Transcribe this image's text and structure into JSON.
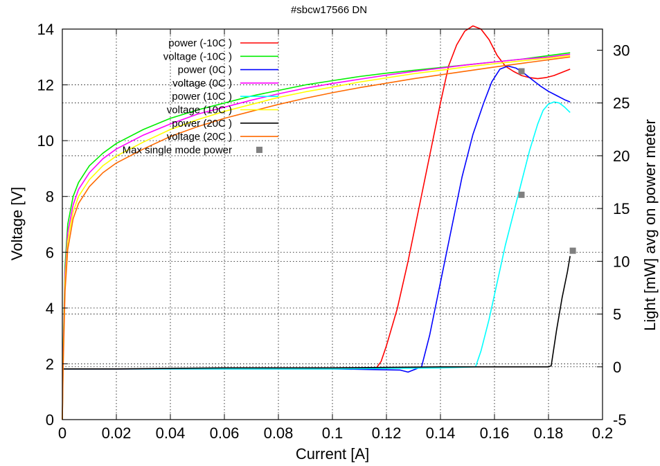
{
  "chart_data": {
    "type": "line",
    "title": "#sbcw17566 DN",
    "xlabel": "Current [A]",
    "ylabel": "Voltage [V]",
    "y2label": "Light [mW] avg on power meter",
    "xlim": [
      0,
      0.2
    ],
    "ylim": [
      0,
      14
    ],
    "y2lim": [
      -5,
      32
    ],
    "xticks": [
      "0",
      "0.02",
      "0.04",
      "0.06",
      "0.08",
      "0.1",
      "0.12",
      "0.14",
      "0.16",
      "0.18",
      "0.2"
    ],
    "yticks": [
      "0",
      "2",
      "4",
      "6",
      "8",
      "10",
      "12",
      "14"
    ],
    "y2ticks": [
      "-5",
      "0",
      "5",
      "10",
      "15",
      "20",
      "25",
      "30"
    ],
    "grid": true,
    "legend_position": "top-left",
    "series": [
      {
        "name": "power (-10C )",
        "axis": "y2",
        "color": "#ff0000",
        "x": [
          0,
          0.02,
          0.06,
          0.1,
          0.116,
          0.118,
          0.12,
          0.124,
          0.128,
          0.132,
          0.136,
          0.14,
          0.143,
          0.146,
          0.149,
          0.152,
          0.155,
          0.158,
          0.161,
          0.164,
          0.167,
          0.17,
          0.173,
          0.176,
          0.179,
          0.182,
          0.185,
          0.188
        ],
        "y": [
          -0.2,
          -0.2,
          -0.2,
          -0.2,
          -0.2,
          0.5,
          2.0,
          5.5,
          10.0,
          15.0,
          20.0,
          25.0,
          28.5,
          30.5,
          31.8,
          32.3,
          32.0,
          31.0,
          29.5,
          28.5,
          28.0,
          27.6,
          27.4,
          27.3,
          27.4,
          27.6,
          27.9,
          28.2
        ]
      },
      {
        "name": "voltage (-10C )",
        "axis": "y",
        "color": "#00ee00",
        "x": [
          0,
          0.0003,
          0.001,
          0.002,
          0.004,
          0.006,
          0.01,
          0.015,
          0.02,
          0.03,
          0.04,
          0.05,
          0.06,
          0.07,
          0.08,
          0.09,
          0.1,
          0.11,
          0.12,
          0.13,
          0.14,
          0.15,
          0.16,
          0.17,
          0.18,
          0.188
        ],
        "y": [
          0,
          2.5,
          5.5,
          7.0,
          8.0,
          8.5,
          9.1,
          9.55,
          9.9,
          10.4,
          10.8,
          11.1,
          11.35,
          11.6,
          11.8,
          12.0,
          12.15,
          12.3,
          12.42,
          12.52,
          12.62,
          12.72,
          12.82,
          12.92,
          13.05,
          13.15
        ]
      },
      {
        "name": "power (0C )",
        "axis": "y2",
        "color": "#0000ff",
        "x": [
          0,
          0.02,
          0.06,
          0.1,
          0.125,
          0.128,
          0.131,
          0.133,
          0.136,
          0.14,
          0.144,
          0.148,
          0.152,
          0.156,
          0.159,
          0.162,
          0.165,
          0.168,
          0.171,
          0.174,
          0.177,
          0.18,
          0.183,
          0.186,
          0.188
        ],
        "y": [
          -0.2,
          -0.2,
          -0.2,
          -0.2,
          -0.3,
          -0.5,
          -0.2,
          0,
          3.0,
          8.0,
          13.0,
          18.0,
          22.0,
          25.0,
          27.0,
          28.2,
          28.5,
          28.3,
          27.8,
          27.2,
          26.6,
          26.1,
          25.7,
          25.3,
          25.1
        ]
      },
      {
        "name": "voltage (0C )",
        "axis": "y",
        "color": "#ff00ff",
        "x": [
          0,
          0.0003,
          0.001,
          0.002,
          0.004,
          0.006,
          0.01,
          0.015,
          0.02,
          0.03,
          0.04,
          0.05,
          0.06,
          0.07,
          0.08,
          0.09,
          0.1,
          0.11,
          0.12,
          0.13,
          0.14,
          0.15,
          0.16,
          0.17,
          0.18,
          0.188
        ],
        "y": [
          0,
          2.3,
          5.2,
          6.7,
          7.7,
          8.25,
          8.85,
          9.35,
          9.7,
          10.2,
          10.6,
          10.95,
          11.2,
          11.45,
          11.68,
          11.88,
          12.05,
          12.2,
          12.35,
          12.48,
          12.6,
          12.72,
          12.82,
          12.92,
          13.0,
          13.1
        ]
      },
      {
        "name": "power (10C )",
        "axis": "y2",
        "color": "#00ffff",
        "x": [
          0,
          0.02,
          0.06,
          0.1,
          0.14,
          0.153,
          0.155,
          0.158,
          0.161,
          0.164,
          0.167,
          0.17,
          0.173,
          0.176,
          0.178,
          0.18,
          0.182,
          0.184,
          0.186,
          0.188
        ],
        "y": [
          -0.2,
          -0.2,
          -0.2,
          -0.2,
          -0.1,
          0,
          1.5,
          4.5,
          8.0,
          11.5,
          14.5,
          17.5,
          20.5,
          23.0,
          24.3,
          24.9,
          25.1,
          25.0,
          24.6,
          24.1
        ]
      },
      {
        "name": "voltage (10C )",
        "axis": "y",
        "color": "#ffff00",
        "x": [
          0,
          0.0003,
          0.001,
          0.002,
          0.004,
          0.006,
          0.01,
          0.015,
          0.02,
          0.03,
          0.04,
          0.05,
          0.06,
          0.07,
          0.08,
          0.09,
          0.1,
          0.11,
          0.12,
          0.13,
          0.14,
          0.15,
          0.16,
          0.17,
          0.18,
          0.188
        ],
        "y": [
          0,
          2.1,
          4.9,
          6.4,
          7.45,
          8.0,
          8.6,
          9.1,
          9.45,
          9.95,
          10.4,
          10.75,
          11.05,
          11.3,
          11.55,
          11.75,
          11.92,
          12.1,
          12.25,
          12.4,
          12.52,
          12.65,
          12.76,
          12.86,
          12.96,
          13.05
        ]
      },
      {
        "name": "power (20C )",
        "axis": "y2",
        "color": "#000000",
        "x": [
          0,
          0.02,
          0.06,
          0.1,
          0.14,
          0.16,
          0.175,
          0.18,
          0.181,
          0.183,
          0.185,
          0.187,
          0.188
        ],
        "y": [
          -0.2,
          -0.2,
          -0.1,
          -0.1,
          0,
          0,
          0,
          0,
          0.1,
          3.5,
          6.5,
          9.0,
          10.5
        ]
      },
      {
        "name": "voltage (20C )",
        "axis": "y",
        "color": "#ff6a00",
        "x": [
          0,
          0.0003,
          0.001,
          0.002,
          0.004,
          0.006,
          0.01,
          0.015,
          0.02,
          0.03,
          0.04,
          0.05,
          0.06,
          0.07,
          0.08,
          0.09,
          0.1,
          0.11,
          0.12,
          0.13,
          0.14,
          0.15,
          0.16,
          0.17,
          0.18,
          0.188
        ],
        "y": [
          0,
          1.9,
          4.6,
          6.1,
          7.2,
          7.75,
          8.35,
          8.85,
          9.2,
          9.7,
          10.15,
          10.5,
          10.8,
          11.05,
          11.3,
          11.52,
          11.72,
          11.9,
          12.06,
          12.22,
          12.36,
          12.5,
          12.64,
          12.77,
          12.9,
          13.0
        ]
      },
      {
        "name": "Max single mode power",
        "axis": "y2",
        "color": "#808080",
        "type": "scatter",
        "x": [
          0.17,
          0.17,
          0.189
        ],
        "y": [
          28.0,
          16.3,
          11.0
        ]
      }
    ]
  }
}
